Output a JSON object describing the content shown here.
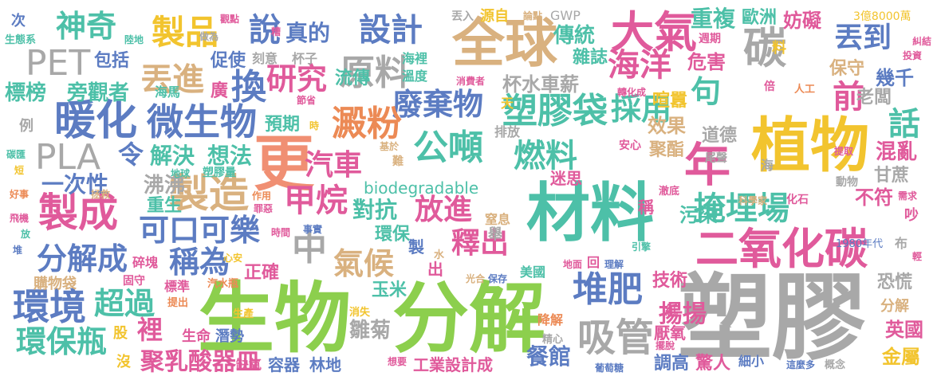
{
  "palette": {
    "green": "#8ccf4d",
    "grey": "#a8a8a8",
    "pink": "#e05a9b",
    "blue": "#5c7cc2",
    "teal": "#4dc0a8",
    "tan": "#d9b17f",
    "yellow": "#f2c42e",
    "orange": "#ec8a55",
    "salmon": "#f08f73"
  },
  "words": [
    {
      "text": "塑膠",
      "color": "grey"
    },
    {
      "text": "生物",
      "color": "green"
    },
    {
      "text": "分解",
      "color": "green"
    },
    {
      "text": "材料",
      "color": "teal"
    },
    {
      "text": "全球",
      "color": "tan"
    },
    {
      "text": "植物",
      "color": "yellow"
    },
    {
      "text": "更",
      "color": "salmon"
    },
    {
      "text": "二氧化碳",
      "color": "pink"
    },
    {
      "text": "大氣",
      "color": "pink"
    },
    {
      "text": "碳",
      "color": "grey"
    },
    {
      "text": "年",
      "color": "pink"
    },
    {
      "text": "製造",
      "color": "tan"
    },
    {
      "text": "製成",
      "color": "pink"
    },
    {
      "text": "環境",
      "color": "blue"
    },
    {
      "text": "暖化",
      "color": "blue"
    },
    {
      "text": "微生物",
      "color": "blue"
    },
    {
      "text": "PET",
      "color": "grey"
    },
    {
      "text": "PLA",
      "color": "grey"
    },
    {
      "text": "神奇",
      "color": "teal"
    },
    {
      "text": "製品",
      "color": "yellow"
    },
    {
      "text": "丟進",
      "color": "tan"
    },
    {
      "text": "研究",
      "color": "pink"
    },
    {
      "text": "原料",
      "color": "grey"
    },
    {
      "text": "說",
      "color": "blue"
    },
    {
      "text": "真的",
      "color": "blue"
    },
    {
      "text": "設計",
      "color": "blue"
    },
    {
      "text": "換",
      "color": "blue"
    },
    {
      "text": "廢棄物",
      "color": "blue"
    },
    {
      "text": "塑膠袋",
      "color": "teal"
    },
    {
      "text": "澱粉",
      "color": "orange"
    },
    {
      "text": "公噸",
      "color": "teal"
    },
    {
      "text": "燃料",
      "color": "teal"
    },
    {
      "text": "汽車",
      "color": "pink"
    },
    {
      "text": "甲烷",
      "color": "pink"
    },
    {
      "text": "中",
      "color": "grey"
    },
    {
      "text": "氣候",
      "color": "tan"
    },
    {
      "text": "放進",
      "color": "pink"
    },
    {
      "text": "釋出",
      "color": "pink"
    },
    {
      "text": "堆肥",
      "color": "blue"
    },
    {
      "text": "吸管",
      "color": "grey"
    },
    {
      "text": "海洋",
      "color": "pink"
    },
    {
      "text": "採用",
      "color": "teal"
    },
    {
      "text": "掩埋場",
      "color": "teal"
    },
    {
      "text": "丟到",
      "color": "blue"
    },
    {
      "text": "前",
      "color": "pink"
    },
    {
      "text": "話",
      "color": "teal"
    },
    {
      "text": "句",
      "color": "teal"
    },
    {
      "text": "可口可樂",
      "color": "blue"
    },
    {
      "text": "分解成",
      "color": "blue"
    },
    {
      "text": "稱為",
      "color": "blue"
    },
    {
      "text": "超過",
      "color": "teal"
    },
    {
      "text": "環保瓶",
      "color": "teal"
    },
    {
      "text": "裡",
      "color": "pink"
    },
    {
      "text": "聚乳酸器皿",
      "color": "pink"
    },
    {
      "text": "biodegradable",
      "color": "teal"
    },
    {
      "text": "對抗",
      "color": "teal"
    },
    {
      "text": "雛菊",
      "color": "grey"
    },
    {
      "text": "餐館",
      "color": "blue"
    },
    {
      "text": "令",
      "color": "blue"
    },
    {
      "text": "解決",
      "color": "teal"
    },
    {
      "text": "想法",
      "color": "teal"
    },
    {
      "text": "一次性",
      "color": "blue"
    },
    {
      "text": "沸沸",
      "color": "grey"
    },
    {
      "text": "揚揚",
      "color": "pink"
    },
    {
      "text": "重複",
      "color": "teal"
    },
    {
      "text": "歐洲",
      "color": "teal"
    },
    {
      "text": "妨礙",
      "color": "pink"
    },
    {
      "text": "傳統",
      "color": "teal"
    },
    {
      "text": "雜誌",
      "color": "teal"
    },
    {
      "text": "危害",
      "color": "pink"
    },
    {
      "text": "保守",
      "color": "tan"
    },
    {
      "text": "幾千",
      "color": "blue"
    },
    {
      "text": "標榜",
      "color": "teal"
    },
    {
      "text": "旁觀者",
      "color": "teal"
    },
    {
      "text": "包括",
      "color": "blue"
    },
    {
      "text": "促使",
      "color": "blue"
    },
    {
      "text": "廣",
      "color": "pink"
    },
    {
      "text": "杯水車薪",
      "color": "grey"
    },
    {
      "text": "喧囂",
      "color": "yellow"
    },
    {
      "text": "老闆",
      "color": "grey"
    },
    {
      "text": "流傳",
      "color": "teal"
    },
    {
      "text": "效果",
      "color": "tan"
    },
    {
      "text": "道德",
      "color": "grey"
    },
    {
      "text": "預期",
      "color": "teal"
    },
    {
      "text": "聚酯",
      "color": "tan"
    },
    {
      "text": "混亂",
      "color": "pink"
    },
    {
      "text": "甘蔗",
      "color": "grey"
    },
    {
      "text": "環保",
      "color": "teal"
    },
    {
      "text": "不符",
      "color": "pink"
    },
    {
      "text": "污染",
      "color": "teal"
    },
    {
      "text": "玉米",
      "color": "teal"
    },
    {
      "text": "重生",
      "color": "teal"
    },
    {
      "text": "正確",
      "color": "pink"
    },
    {
      "text": "技術",
      "color": "pink"
    },
    {
      "text": "恐慌",
      "color": "grey"
    },
    {
      "text": "英國",
      "color": "pink"
    },
    {
      "text": "金屬",
      "color": "yellow"
    },
    {
      "text": "厭氧",
      "color": "pink"
    },
    {
      "text": "調高",
      "color": "blue"
    },
    {
      "text": "驚人",
      "color": "pink"
    },
    {
      "text": "工業設計成",
      "color": "pink"
    },
    {
      "text": "容器",
      "color": "blue"
    },
    {
      "text": "林地",
      "color": "blue"
    },
    {
      "text": "生命",
      "color": "pink"
    },
    {
      "text": "潛勢",
      "color": "blue"
    },
    {
      "text": "購物袋",
      "color": "tan"
    },
    {
      "text": "迷思",
      "color": "pink"
    },
    {
      "text": "美國",
      "color": "teal"
    },
    {
      "text": "分解",
      "color": "tan"
    },
    {
      "text": "GWP",
      "color": "grey"
    },
    {
      "text": "3億8000萬",
      "color": "yellow"
    },
    {
      "text": "源自",
      "color": "yellow"
    },
    {
      "text": "丟入",
      "color": "grey"
    },
    {
      "text": "生態系",
      "color": "teal"
    },
    {
      "text": "次",
      "color": "blue"
    },
    {
      "text": "例",
      "color": "grey"
    },
    {
      "text": "股",
      "color": "yellow"
    },
    {
      "text": "沒",
      "color": "yellow"
    },
    {
      "text": "海馬",
      "color": "teal"
    },
    {
      "text": "刻意",
      "color": "grey"
    },
    {
      "text": "杯子",
      "color": "grey"
    },
    {
      "text": "海裡",
      "color": "teal"
    },
    {
      "text": "溫度",
      "color": "teal"
    },
    {
      "text": "週期",
      "color": "pink"
    },
    {
      "text": "人工",
      "color": "orange"
    },
    {
      "text": "尾聲",
      "color": "grey"
    },
    {
      "text": "安心",
      "color": "pink"
    },
    {
      "text": "科學家",
      "color": "tan"
    },
    {
      "text": "化石",
      "color": "pink"
    },
    {
      "text": "動物",
      "color": "grey"
    },
    {
      "text": "1980年代",
      "color": "blue"
    },
    {
      "text": "事實",
      "color": "blue"
    },
    {
      "text": "作用",
      "color": "orange"
    },
    {
      "text": "時間",
      "color": "pink"
    },
    {
      "text": "罪惡",
      "color": "pink"
    },
    {
      "text": "碎塊",
      "color": "pink"
    },
    {
      "text": "固守",
      "color": "pink"
    },
    {
      "text": "標準",
      "color": "pink"
    },
    {
      "text": "汽水瓶",
      "color": "orange"
    },
    {
      "text": "提出",
      "color": "orange"
    },
    {
      "text": "消失",
      "color": "yellow"
    },
    {
      "text": "降解",
      "color": "orange"
    },
    {
      "text": "窒息",
      "color": "tan"
    },
    {
      "text": "舉",
      "color": "grey"
    },
    {
      "text": "保存",
      "color": "blue"
    },
    {
      "text": "光合",
      "color": "tan"
    },
    {
      "text": "地面",
      "color": "pink"
    },
    {
      "text": "回",
      "color": "pink"
    },
    {
      "text": "理解",
      "color": "blue"
    },
    {
      "text": "引擎",
      "color": "teal"
    },
    {
      "text": "擺脫",
      "color": "pink"
    },
    {
      "text": "細小",
      "color": "blue"
    },
    {
      "text": "這麼多",
      "color": "blue"
    },
    {
      "text": "概念",
      "color": "grey"
    },
    {
      "text": "葡萄糖",
      "color": "blue"
    },
    {
      "text": "精心",
      "color": "grey"
    },
    {
      "text": "想要",
      "color": "pink"
    },
    {
      "text": "缺氧",
      "color": "pink"
    },
    {
      "text": "地球",
      "color": "teal"
    },
    {
      "text": "塑膠量",
      "color": "teal"
    },
    {
      "text": "基於",
      "color": "tan"
    },
    {
      "text": "難",
      "color": "tan"
    },
    {
      "text": "排放",
      "color": "grey"
    },
    {
      "text": "天",
      "color": "yellow"
    },
    {
      "text": "消費者",
      "color": "pink"
    },
    {
      "text": "轉化成",
      "color": "pink"
    },
    {
      "text": "節省",
      "color": "pink"
    },
    {
      "text": "做為",
      "color": "grey"
    },
    {
      "text": "陸地",
      "color": "teal"
    },
    {
      "text": "觀點",
      "color": "pink"
    },
    {
      "text": "糟",
      "color": "pink"
    },
    {
      "text": "論點",
      "color": "tan"
    },
    {
      "text": "糾結",
      "color": "pink"
    },
    {
      "text": "投資",
      "color": "pink"
    },
    {
      "text": "提取",
      "color": "pink"
    },
    {
      "text": "需求",
      "color": "pink"
    },
    {
      "text": "輕",
      "color": "pink"
    },
    {
      "text": "碳匯",
      "color": "teal"
    },
    {
      "text": "短",
      "color": "yellow"
    },
    {
      "text": "好事",
      "color": "orange"
    },
    {
      "text": "拯救",
      "color": "tan"
    },
    {
      "text": "飛機",
      "color": "pink"
    },
    {
      "text": "放",
      "color": "teal"
    },
    {
      "text": "堆",
      "color": "blue"
    },
    {
      "text": "布",
      "color": "grey"
    },
    {
      "text": "吵",
      "color": "pink"
    },
    {
      "text": "稱",
      "color": "pink"
    },
    {
      "text": "紙",
      "color": "pink"
    },
    {
      "text": "出",
      "color": "pink"
    },
    {
      "text": "製",
      "color": "blue"
    },
    {
      "text": "水",
      "color": "tan"
    },
    {
      "text": "生產",
      "color": "yellow"
    },
    {
      "text": "心安",
      "color": "yellow"
    },
    {
      "text": "時",
      "color": "yellow"
    },
    {
      "text": "海",
      "color": "grey"
    },
    {
      "text": "倍",
      "color": "pink"
    },
    {
      "text": "料",
      "color": "yellow"
    },
    {
      "text": "澈底",
      "color": "pink"
    }
  ]
}
